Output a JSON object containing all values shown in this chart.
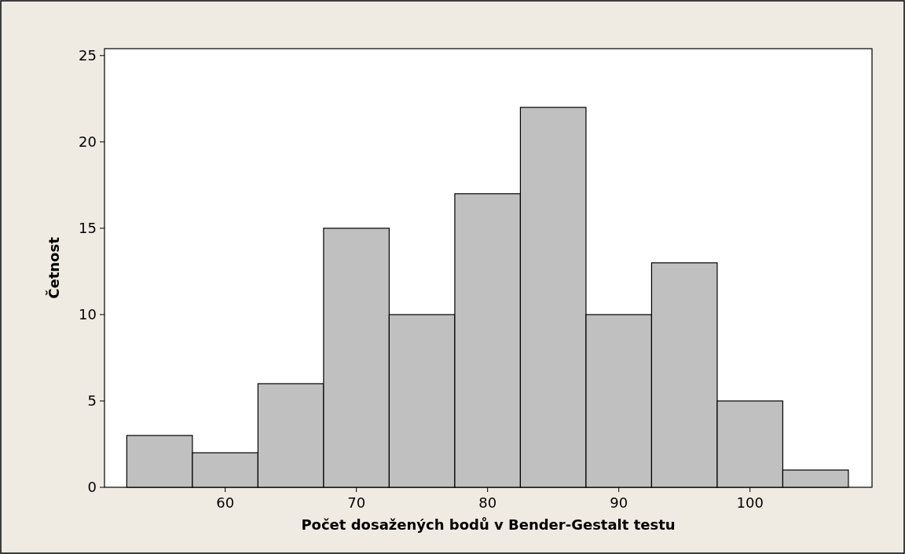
{
  "chart_data": {
    "type": "histogram",
    "xlabel": "Počet dosažených bodů v Bender-Gestalt testu",
    "ylabel": "Četnost",
    "bins": [
      52.5,
      57.5,
      62.5,
      67.5,
      72.5,
      77.5,
      82.5,
      87.5,
      92.5,
      97.5,
      102.5,
      107.5
    ],
    "values": [
      3,
      2,
      6,
      15,
      10,
      17,
      22,
      10,
      13,
      5,
      1
    ],
    "color": "#c0c0c0",
    "xlim": [
      50.8,
      109.3
    ],
    "xticks": [
      60,
      70,
      80,
      90,
      100
    ],
    "ylim": [
      0,
      25.4
    ],
    "yticks": [
      0,
      5,
      10,
      15,
      20,
      25
    ],
    "grid": false
  }
}
